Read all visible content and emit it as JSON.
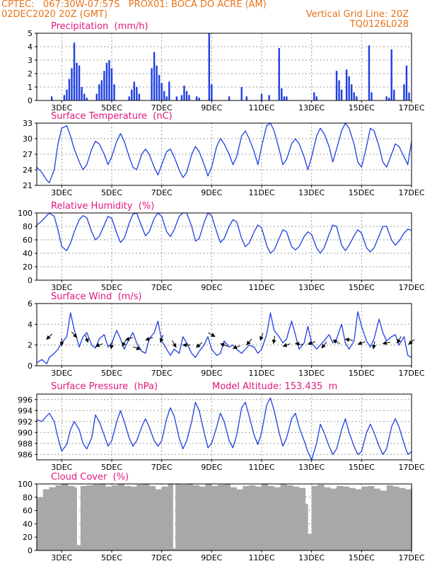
{
  "header": {
    "line1_left": "CPTEC:   067:30W-07:57S   PROX01: BOCA DO ACRE (AM)",
    "line2_left": "02DEC2020 20Z (GMT)",
    "line2_right": "Vertical Grid Line: 20Z",
    "line3_right": "TQ0126L028"
  },
  "colors": {
    "header": "#e8731a",
    "title": "#e0197d",
    "line": "#1f3fe0",
    "bar": "#1f3fe0",
    "cloud": "#a8a8a8",
    "grid": "#9a9a9a",
    "arrow": "#000000"
  },
  "x_axis": {
    "tick_labels": [
      "3DEC",
      "5DEC",
      "7DEC",
      "9DEC",
      "11DEC",
      "13DEC",
      "15DEC",
      "17DEC"
    ],
    "tick_days": [
      3,
      5,
      7,
      9,
      11,
      13,
      15,
      17
    ],
    "range": [
      2.0,
      17.0
    ]
  },
  "chart_data": [
    {
      "id": "precip",
      "type": "bar",
      "title": "Precipitation  (mm/h)",
      "ylim": [
        0,
        5
      ],
      "yticks": [
        "0",
        "1",
        "2",
        "3",
        "4",
        "5"
      ],
      "grid": true,
      "x": [
        2.6,
        3.1,
        3.2,
        3.3,
        3.4,
        3.5,
        3.6,
        3.7,
        3.8,
        3.9,
        4.0,
        4.4,
        4.5,
        4.6,
        4.7,
        4.8,
        4.9,
        5.0,
        5.1,
        5.7,
        5.8,
        5.9,
        6.0,
        6.1,
        6.6,
        6.7,
        6.8,
        6.9,
        7.0,
        7.1,
        7.2,
        7.3,
        7.6,
        7.8,
        7.9,
        8.0,
        8.1,
        8.4,
        8.5,
        8.9,
        9.0,
        9.7,
        10.2,
        10.4,
        11.0,
        11.3,
        11.7,
        11.8,
        11.9,
        12.0,
        13.1,
        13.2,
        14.0,
        14.1,
        14.2,
        14.4,
        14.5,
        14.6,
        14.7,
        14.8,
        15.3,
        15.4,
        16.0,
        16.1,
        16.2,
        16.3,
        16.7,
        16.8,
        16.9
      ],
      "values": [
        0.3,
        0.4,
        0.8,
        1.6,
        2.4,
        4.3,
        2.8,
        2.6,
        1.0,
        0.5,
        0.2,
        0.5,
        1.2,
        1.5,
        2.2,
        2.8,
        3.0,
        2.4,
        1.2,
        0.3,
        0.8,
        1.4,
        1.0,
        0.5,
        2.4,
        3.6,
        2.6,
        1.9,
        1.3,
        0.7,
        0.3,
        1.4,
        0.3,
        0.4,
        1.1,
        0.7,
        0.4,
        0.3,
        0.2,
        5.0,
        1.2,
        0.3,
        1.0,
        0.3,
        0.5,
        0.4,
        3.9,
        0.9,
        0.3,
        0.3,
        0.6,
        0.3,
        2.2,
        1.5,
        0.8,
        2.3,
        1.8,
        1.2,
        0.6,
        0.3,
        4.1,
        0.6,
        0.3,
        0.2,
        3.8,
        0.8,
        1.2,
        2.6,
        0.6
      ]
    },
    {
      "id": "temp",
      "type": "line",
      "title": "Surface Temperature  (nC)",
      "ylim": [
        21,
        33
      ],
      "yticks": [
        "21",
        "24",
        "27",
        "30",
        "33"
      ],
      "grid": true,
      "x": [
        2.0,
        2.2,
        2.4,
        2.5,
        2.7,
        2.85,
        3.0,
        3.2,
        3.35,
        3.5,
        3.7,
        3.85,
        4.0,
        4.2,
        4.35,
        4.5,
        4.7,
        4.85,
        5.0,
        5.2,
        5.35,
        5.5,
        5.7,
        5.85,
        6.0,
        6.2,
        6.35,
        6.5,
        6.7,
        6.85,
        7.0,
        7.2,
        7.35,
        7.5,
        7.7,
        7.85,
        8.0,
        8.2,
        8.35,
        8.5,
        8.7,
        8.85,
        9.0,
        9.2,
        9.35,
        9.5,
        9.7,
        9.85,
        10.0,
        10.2,
        10.35,
        10.5,
        10.7,
        10.85,
        11.0,
        11.2,
        11.35,
        11.5,
        11.7,
        11.85,
        12.0,
        12.2,
        12.35,
        12.5,
        12.7,
        12.85,
        13.0,
        13.2,
        13.35,
        13.5,
        13.7,
        13.85,
        14.0,
        14.2,
        14.35,
        14.5,
        14.7,
        14.85,
        15.0,
        15.2,
        15.35,
        15.5,
        15.7,
        15.85,
        16.0,
        16.2,
        16.35,
        16.5,
        16.7,
        16.85,
        17.0
      ],
      "values": [
        24.5,
        23.5,
        22.0,
        21.5,
        24.0,
        29.0,
        32.0,
        32.5,
        30.5,
        28.0,
        25.5,
        24.0,
        25.0,
        28.0,
        29.5,
        29.0,
        27.0,
        25.0,
        26.5,
        29.5,
        31.0,
        29.5,
        26.5,
        24.5,
        24.0,
        27.0,
        28.0,
        27.0,
        24.5,
        23.0,
        25.0,
        27.5,
        28.0,
        26.5,
        24.0,
        22.5,
        23.5,
        27.0,
        28.5,
        27.5,
        25.0,
        22.8,
        24.5,
        28.5,
        30.0,
        29.0,
        27.0,
        25.0,
        26.5,
        30.5,
        31.5,
        30.0,
        27.5,
        25.0,
        28.5,
        32.5,
        33.0,
        31.5,
        28.0,
        25.0,
        26.0,
        29.0,
        30.0,
        29.0,
        26.5,
        24.0,
        26.5,
        30.5,
        32.0,
        31.0,
        28.5,
        25.5,
        28.0,
        31.5,
        33.0,
        32.0,
        29.0,
        25.5,
        24.5,
        28.5,
        32.0,
        31.5,
        28.5,
        25.5,
        24.5,
        27.0,
        29.0,
        28.5,
        26.5,
        25.0,
        29.5
      ]
    },
    {
      "id": "rh",
      "type": "line",
      "title": "Relative Humidity  (%)",
      "ylim": [
        0,
        100
      ],
      "yticks": [
        "0",
        "20",
        "40",
        "60",
        "80",
        "100"
      ],
      "grid": true,
      "x": [
        2.0,
        2.2,
        2.4,
        2.5,
        2.7,
        2.85,
        3.0,
        3.2,
        3.35,
        3.5,
        3.7,
        3.85,
        4.0,
        4.2,
        4.35,
        4.5,
        4.7,
        4.85,
        5.0,
        5.2,
        5.35,
        5.5,
        5.7,
        5.85,
        6.0,
        6.2,
        6.35,
        6.5,
        6.7,
        6.85,
        7.0,
        7.2,
        7.35,
        7.5,
        7.7,
        7.85,
        8.0,
        8.2,
        8.35,
        8.5,
        8.7,
        8.85,
        9.0,
        9.2,
        9.35,
        9.5,
        9.7,
        9.85,
        10.0,
        10.2,
        10.35,
        10.5,
        10.7,
        10.85,
        11.0,
        11.2,
        11.35,
        11.5,
        11.7,
        11.85,
        12.0,
        12.2,
        12.35,
        12.5,
        12.7,
        12.85,
        13.0,
        13.2,
        13.35,
        13.5,
        13.7,
        13.85,
        14.0,
        14.2,
        14.35,
        14.5,
        14.7,
        14.85,
        15.0,
        15.2,
        15.35,
        15.5,
        15.7,
        15.85,
        16.0,
        16.2,
        16.35,
        16.5,
        16.7,
        16.85,
        17.0
      ],
      "values": [
        82,
        88,
        96,
        100,
        95,
        75,
        50,
        44,
        55,
        72,
        90,
        96,
        93,
        72,
        60,
        65,
        82,
        95,
        92,
        70,
        56,
        62,
        85,
        98,
        100,
        80,
        66,
        72,
        92,
        100,
        95,
        72,
        65,
        75,
        95,
        100,
        100,
        80,
        58,
        62,
        86,
        100,
        96,
        72,
        56,
        62,
        80,
        90,
        87,
        62,
        50,
        55,
        72,
        82,
        78,
        52,
        40,
        45,
        62,
        75,
        72,
        50,
        45,
        50,
        65,
        72,
        68,
        48,
        40,
        48,
        68,
        82,
        80,
        52,
        44,
        52,
        66,
        75,
        70,
        48,
        42,
        48,
        66,
        80,
        80,
        60,
        52,
        58,
        70,
        76,
        74
      ]
    },
    {
      "id": "wind",
      "type": "line",
      "title": "Surface Wind  (m/s)",
      "ylim": [
        0,
        6
      ],
      "yticks": [
        "0",
        "2",
        "4",
        "6"
      ],
      "grid": true,
      "x": [
        2.0,
        2.2,
        2.4,
        2.5,
        2.7,
        2.85,
        3.0,
        3.2,
        3.35,
        3.5,
        3.7,
        3.85,
        4.0,
        4.2,
        4.35,
        4.5,
        4.7,
        4.85,
        5.0,
        5.2,
        5.35,
        5.5,
        5.7,
        5.85,
        6.0,
        6.2,
        6.35,
        6.5,
        6.7,
        6.85,
        7.0,
        7.2,
        7.35,
        7.5,
        7.7,
        7.85,
        8.0,
        8.2,
        8.35,
        8.5,
        8.7,
        8.85,
        9.0,
        9.2,
        9.35,
        9.5,
        9.7,
        9.85,
        10.0,
        10.2,
        10.35,
        10.5,
        10.7,
        10.85,
        11.0,
        11.2,
        11.35,
        11.5,
        11.7,
        11.85,
        12.0,
        12.2,
        12.35,
        12.5,
        12.7,
        12.85,
        13.0,
        13.2,
        13.35,
        13.5,
        13.7,
        13.85,
        14.0,
        14.2,
        14.35,
        14.5,
        14.7,
        14.85,
        15.0,
        15.2,
        15.35,
        15.5,
        15.7,
        15.85,
        16.0,
        16.2,
        16.35,
        16.5,
        16.7,
        16.85,
        17.0
      ],
      "values": [
        0.3,
        0.6,
        0.2,
        0.8,
        1.2,
        1.6,
        2.2,
        2.8,
        5.1,
        3.5,
        1.8,
        2.8,
        3.2,
        2.0,
        1.7,
        2.6,
        3.0,
        1.8,
        2.2,
        3.4,
        2.6,
        1.6,
        2.6,
        3.2,
        2.2,
        1.4,
        1.2,
        2.6,
        3.2,
        4.3,
        2.4,
        1.6,
        1.0,
        1.6,
        1.2,
        2.8,
        2.2,
        1.2,
        0.8,
        1.4,
        2.0,
        2.8,
        1.6,
        1.0,
        1.2,
        2.4,
        1.8,
        2.0,
        1.6,
        1.2,
        1.6,
        2.0,
        1.8,
        1.2,
        1.6,
        3.0,
        5.1,
        3.4,
        2.8,
        2.2,
        2.6,
        4.3,
        3.0,
        1.6,
        2.2,
        3.8,
        2.2,
        1.6,
        2.0,
        2.4,
        3.0,
        2.2,
        2.6,
        4.0,
        2.2,
        1.6,
        2.4,
        5.2,
        3.8,
        2.4,
        1.8,
        2.6,
        4.5,
        3.2,
        2.4,
        2.8,
        3.0,
        2.0,
        2.8,
        1.0,
        0.8
      ]
    },
    {
      "id": "pressure",
      "type": "line",
      "title": "Surface Pressure  (hPa)",
      "subtitle": "Model Altitude: 153.435  m",
      "ylim": [
        985,
        997
      ],
      "yticks": [
        "986",
        "988",
        "990",
        "992",
        "994",
        "996"
      ],
      "grid": true,
      "x": [
        2.0,
        2.2,
        2.4,
        2.5,
        2.7,
        2.85,
        3.0,
        3.2,
        3.35,
        3.5,
        3.7,
        3.85,
        4.0,
        4.2,
        4.35,
        4.5,
        4.7,
        4.85,
        5.0,
        5.2,
        5.35,
        5.5,
        5.7,
        5.85,
        6.0,
        6.2,
        6.35,
        6.5,
        6.7,
        6.85,
        7.0,
        7.2,
        7.35,
        7.5,
        7.7,
        7.85,
        8.0,
        8.2,
        8.35,
        8.5,
        8.7,
        8.85,
        9.0,
        9.2,
        9.35,
        9.5,
        9.7,
        9.85,
        10.0,
        10.2,
        10.35,
        10.5,
        10.7,
        10.85,
        11.0,
        11.2,
        11.35,
        11.5,
        11.7,
        11.85,
        12.0,
        12.2,
        12.35,
        12.5,
        12.7,
        12.85,
        13.0,
        13.2,
        13.35,
        13.5,
        13.7,
        13.85,
        14.0,
        14.2,
        14.35,
        14.5,
        14.7,
        14.85,
        15.0,
        15.2,
        15.35,
        15.5,
        15.7,
        15.85,
        16.0,
        16.2,
        16.35,
        16.5,
        16.7,
        16.85,
        17.0
      ],
      "values": [
        992.3,
        992.0,
        993.0,
        993.5,
        992.0,
        989.0,
        986.6,
        987.8,
        990.5,
        992.0,
        990.5,
        988.0,
        987.0,
        989.0,
        993.2,
        992.0,
        989.5,
        987.5,
        988.5,
        992.0,
        994.0,
        992.0,
        989.0,
        987.5,
        988.5,
        991.0,
        992.5,
        991.0,
        988.5,
        987.5,
        988.5,
        992.5,
        994.5,
        993.0,
        989.0,
        987.0,
        988.5,
        992.0,
        995.5,
        994.0,
        990.0,
        987.2,
        988.0,
        991.0,
        993.5,
        992.0,
        988.5,
        987.2,
        989.5,
        994.5,
        995.5,
        993.0,
        989.5,
        987.8,
        990.0,
        995.0,
        996.3,
        994.0,
        990.0,
        987.5,
        989.0,
        992.5,
        993.5,
        991.0,
        988.5,
        986.5,
        985.0,
        988.0,
        991.5,
        990.0,
        987.5,
        986.0,
        987.0,
        990.5,
        992.5,
        990.0,
        987.5,
        986.0,
        986.5,
        990.0,
        991.5,
        990.0,
        987.5,
        986.0,
        987.0,
        991.0,
        992.5,
        991.0,
        988.0,
        986.0,
        986.5
      ]
    },
    {
      "id": "cloud",
      "type": "bar",
      "title": "Cloud Cover  (%)",
      "ylim": [
        0,
        100
      ],
      "yticks": [
        "0",
        "20",
        "40",
        "60",
        "80",
        "100"
      ],
      "grid": true,
      "x": [
        2.0,
        2.25,
        2.5,
        2.75,
        3.0,
        3.25,
        3.5,
        3.6,
        3.75,
        4.0,
        4.25,
        4.5,
        4.75,
        5.0,
        5.25,
        5.5,
        5.75,
        6.0,
        6.25,
        6.5,
        6.75,
        7.0,
        7.25,
        7.45,
        7.55,
        7.75,
        8.0,
        8.25,
        8.5,
        8.75,
        9.0,
        9.25,
        9.5,
        9.75,
        10.0,
        10.25,
        10.5,
        10.75,
        11.0,
        11.25,
        11.5,
        11.75,
        12.0,
        12.25,
        12.5,
        12.75,
        12.85,
        13.0,
        13.25,
        13.5,
        13.75,
        14.0,
        14.25,
        14.5,
        14.75,
        15.0,
        15.25,
        15.5,
        15.75,
        16.0,
        16.25,
        16.5,
        16.75,
        17.0
      ],
      "values": [
        80,
        92,
        95,
        98,
        100,
        97,
        95,
        8,
        97,
        98,
        99,
        100,
        96,
        98,
        100,
        97,
        96,
        99,
        100,
        97,
        92,
        96,
        100,
        3,
        100,
        99,
        100,
        98,
        96,
        100,
        97,
        99,
        100,
        95,
        92,
        97,
        98,
        96,
        100,
        97,
        95,
        100,
        98,
        96,
        94,
        70,
        25,
        97,
        99,
        95,
        93,
        97,
        96,
        94,
        92,
        96,
        97,
        93,
        90,
        98,
        96,
        94,
        92,
        95
      ]
    }
  ],
  "wind_arrows": {
    "x": [
      2.5,
      3.0,
      3.5,
      4.0,
      4.5,
      5.0,
      5.5,
      5.7,
      6.0,
      6.5,
      7.0,
      7.5,
      8.0,
      8.5,
      9.0,
      9.5,
      10.0,
      10.5,
      11.0,
      11.5,
      12.0,
      12.5,
      13.0,
      13.5,
      14.0,
      14.5,
      15.0,
      15.5,
      16.0,
      16.5,
      17.0
    ],
    "dir_deg": [
      225,
      270,
      315,
      290,
      200,
      260,
      240,
      200,
      340,
      200,
      250,
      300,
      180,
      220,
      330,
      160,
      200,
      230,
      250,
      260,
      200,
      170,
      200,
      230,
      150,
      170,
      200,
      260,
      190,
      240,
      220
    ],
    "base_value": [
      2.8,
      2.3,
      3.0,
      2.6,
      2.0,
      2.0,
      2.2,
      2.6,
      1.7,
      2.6,
      2.6,
      2.1,
      2.0,
      2.0,
      3.0,
      2.0,
      1.8,
      2.3,
      2.8,
      2.5,
      2.0,
      2.1,
      2.2,
      2.0,
      2.3,
      2.5,
      2.2,
      2.0,
      2.2,
      2.5,
      2.3
    ]
  }
}
